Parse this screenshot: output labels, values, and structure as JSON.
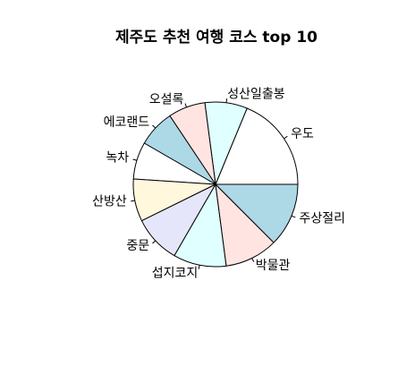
{
  "chart_data": {
    "type": "pie",
    "title": "제주도 추천 여행 코스 top 10",
    "slices": [
      {
        "label": "우도",
        "value": 18,
        "color": "#FFFFFF"
      },
      {
        "label": "성산일출봉",
        "value": 8,
        "color": "#E0FFFF"
      },
      {
        "label": "오설록",
        "value": 7,
        "color": "#FFE4E1"
      },
      {
        "label": "에코랜드",
        "value": 7,
        "color": "#ADD8E6"
      },
      {
        "label": "녹차",
        "value": 7,
        "color": "#FFFFFF"
      },
      {
        "label": "산방산",
        "value": 8,
        "color": "#FFF8DC"
      },
      {
        "label": "중문",
        "value": 9,
        "color": "#E6E6FA"
      },
      {
        "label": "섭지코지",
        "value": 10,
        "color": "#E0FFFF"
      },
      {
        "label": "박물관",
        "value": 10,
        "color": "#FFE4E1"
      },
      {
        "label": "주상절리",
        "value": 12,
        "color": "#ADD8E6"
      }
    ],
    "start": "3 o'clock",
    "direction": "counter-clockwise",
    "legend": "none"
  }
}
